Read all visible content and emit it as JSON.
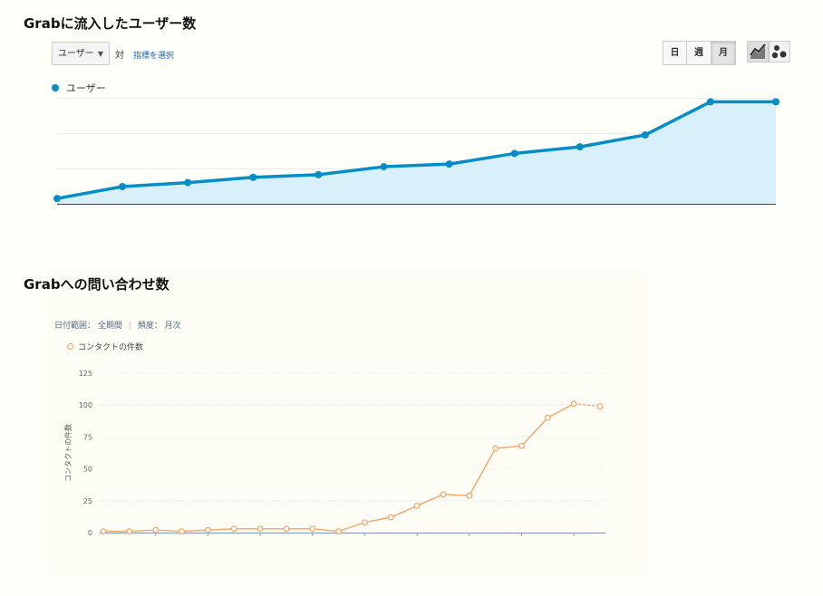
{
  "charts": [
    {
      "title": "Grabに流入したユーザー数",
      "controls": {
        "metric_select": "ユーザー",
        "vs_label": "対",
        "pick_metric_link": "指標を選択",
        "period_buttons": [
          "日",
          "週",
          "月"
        ],
        "active_period": "月",
        "view_icons": [
          "line-chart-icon",
          "motion-chart-icon"
        ]
      }
    },
    {
      "title": "Grabへの問い合わせ数",
      "meta": {
        "date_range_label": "日付範囲：",
        "date_range_value": "全期間",
        "frequency_label": "頻度：",
        "frequency_value": "月次"
      }
    }
  ],
  "colors": {
    "users_line": "#058dc7",
    "users_fill": "#d8f0fa",
    "contacts_line": "#f3a46a"
  },
  "chart_data": [
    {
      "type": "area",
      "series": [
        {
          "name": "ユーザー",
          "values": [
            0.04,
            0.13,
            0.16,
            0.2,
            0.22,
            0.28,
            0.3,
            0.38,
            0.43,
            0.52,
            0.77,
            0.77
          ]
        }
      ],
      "x": [
        1,
        2,
        3,
        4,
        5,
        6,
        7,
        8,
        9,
        10,
        11,
        12
      ],
      "ylim": [
        0,
        0.8
      ],
      "grid": true,
      "legend": "top-left",
      "y_tick_labels": false
    },
    {
      "type": "line",
      "series": [
        {
          "name": "コンタクトの件数",
          "values": [
            1,
            1,
            2,
            1,
            2,
            3,
            3,
            3,
            3,
            1,
            8,
            12,
            21,
            30,
            29,
            66,
            68,
            90,
            101,
            99
          ]
        }
      ],
      "x": [
        1,
        2,
        3,
        4,
        5,
        6,
        7,
        8,
        9,
        10,
        11,
        12,
        13,
        14,
        15,
        16,
        17,
        18,
        19,
        20
      ],
      "ylabel": "コンタクトの件数",
      "ylim": [
        0,
        125
      ],
      "yticks": [
        0,
        25,
        50,
        75,
        100,
        125
      ],
      "grid": true,
      "legend": "top-left",
      "last_segment_dashed": true
    }
  ]
}
